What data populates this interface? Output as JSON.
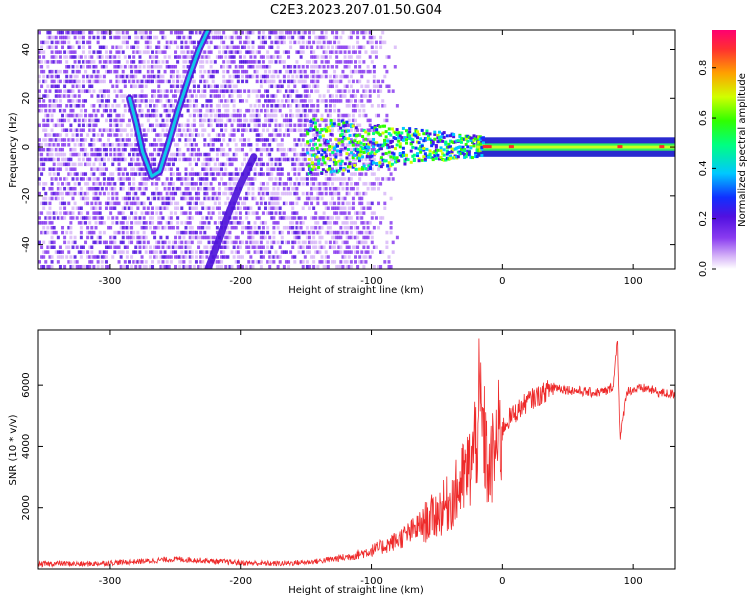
{
  "title": "C2E3.2023.207.01.50.G04",
  "colors": {
    "snr_line": "#ee2a2a",
    "spectrogram_low": "#c9a6f5",
    "spectrogram_mid": "#6a1fd8",
    "spectrogram_peak": "#ff2a2a"
  },
  "chart_data": [
    {
      "type": "heatmap",
      "title": "C2E3.2023.207.01.50.G04",
      "xlabel": "Height of straight line (km)",
      "ylabel": "Frequency (Hz)",
      "xlim": [
        -355,
        132
      ],
      "ylim": [
        -50,
        48
      ],
      "x_ticks": [
        "-300",
        "-200",
        "-100",
        "0",
        "100"
      ],
      "y_ticks": [
        "-40",
        "-20",
        "0",
        "20",
        "40"
      ],
      "colorbar": {
        "label": "Normalized spectral amplitude",
        "range": [
          0,
          0.95
        ],
        "ticks": [
          "0.0",
          "0.2",
          "0.4",
          "0.6",
          "0.8"
        ],
        "colormap": [
          "#ffffff",
          "#d8b8f8",
          "#8a3cf0",
          "#5010e0",
          "#1030ff",
          "#00c8ff",
          "#00ff80",
          "#30ff00",
          "#d0ff00",
          "#ffa000",
          "#ff3030",
          "#ff0070"
        ]
      },
      "features": [
        {
          "name": "carrier",
          "points": [
            [
              -150,
              0
            ],
            [
              -100,
              0
            ],
            [
              -50,
              0
            ],
            [
              0,
              0
            ],
            [
              50,
              0
            ],
            [
              100,
              0
            ],
            [
              132,
              0
            ]
          ]
        },
        {
          "name": "upper-trace",
          "points": [
            [
              -285,
              20
            ],
            [
              -280,
              10
            ],
            [
              -275,
              -2
            ],
            [
              -268,
              -12
            ],
            [
              -262,
              -10
            ],
            [
              -255,
              2
            ],
            [
              -248,
              15
            ],
            [
              -240,
              28
            ],
            [
              -232,
              40
            ],
            [
              -225,
              48
            ]
          ]
        },
        {
          "name": "lower-trace",
          "points": [
            [
              -225,
              -50
            ],
            [
              -218,
              -40
            ],
            [
              -210,
              -28
            ],
            [
              -200,
              -15
            ],
            [
              -190,
              -4
            ]
          ]
        }
      ]
    },
    {
      "type": "line",
      "xlabel": "Height of straight line (km)",
      "ylabel": "SNR (10 * v/v)",
      "xlim": [
        -355,
        132
      ],
      "ylim": [
        0,
        7800
      ],
      "x_ticks": [
        "-300",
        "-200",
        "-100",
        "0",
        "100"
      ],
      "y_ticks": [
        "2000",
        "4000",
        "6000"
      ],
      "series": [
        {
          "x": [
            -355,
            -340,
            -320,
            -300,
            -290,
            -280,
            -270,
            -260,
            -250,
            -240,
            -230,
            -220,
            -210,
            -200,
            -190,
            -180,
            -170,
            -160,
            -150,
            -140,
            -130,
            -120,
            -110,
            -100,
            -90,
            -80,
            -70,
            -60,
            -50,
            -45,
            -40,
            -35,
            -30,
            -25,
            -22,
            -20,
            -18,
            -15,
            -12,
            -10,
            -8,
            -5,
            -2,
            0,
            5,
            10,
            15,
            20,
            25,
            30,
            35,
            40,
            45,
            50,
            60,
            70,
            80,
            85,
            88,
            90,
            95,
            100,
            110,
            120,
            132
          ],
          "y": [
            150,
            180,
            160,
            200,
            220,
            240,
            260,
            300,
            320,
            300,
            280,
            250,
            230,
            200,
            190,
            180,
            180,
            200,
            220,
            260,
            320,
            380,
            480,
            600,
            750,
            950,
            1200,
            1500,
            1800,
            2000,
            2200,
            2500,
            2900,
            3300,
            3800,
            4400,
            5200,
            4600,
            3600,
            3000,
            3500,
            4000,
            4400,
            4600,
            4900,
            5100,
            5300,
            5500,
            5600,
            5700,
            5850,
            5950,
            5900,
            5850,
            5800,
            5750,
            5800,
            6000,
            7600,
            4200,
            5800,
            5850,
            5900,
            5750,
            5700
          ]
        }
      ]
    }
  ]
}
